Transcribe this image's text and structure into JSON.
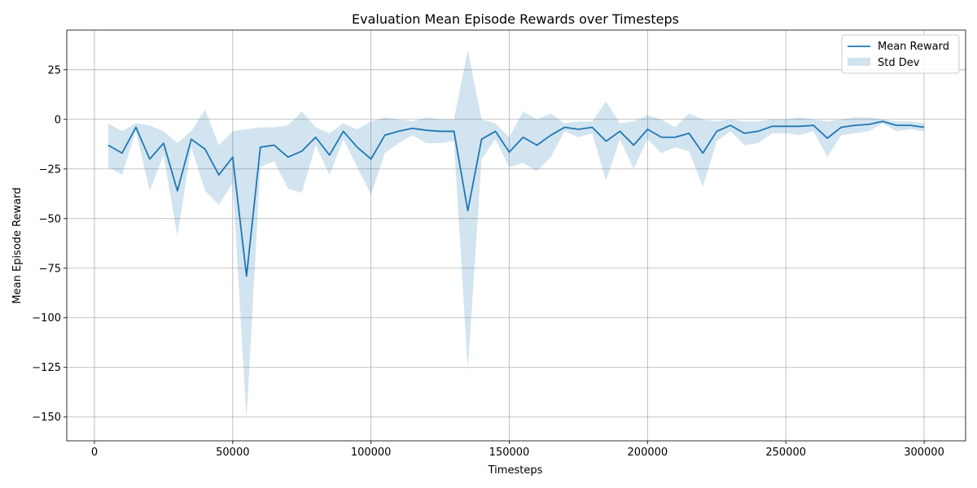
{
  "chart_data": {
    "type": "line",
    "title": "Evaluation Mean Episode Rewards over Timesteps",
    "xlabel": "Timesteps",
    "ylabel": "Mean Episode Reward",
    "xlim": [
      -10000,
      315000
    ],
    "ylim": [
      -162,
      45
    ],
    "xticks": [
      0,
      50000,
      100000,
      150000,
      200000,
      250000,
      300000
    ],
    "xtick_labels": [
      "0",
      "50000",
      "100000",
      "150000",
      "200000",
      "250000",
      "300000"
    ],
    "yticks": [
      25,
      0,
      -25,
      -50,
      -75,
      -100,
      -125,
      -150
    ],
    "ytick_labels": [
      "25",
      "0",
      "−25",
      "−50",
      "−75",
      "−100",
      "−125",
      "−150"
    ],
    "grid": true,
    "legend_position": "top-right",
    "x": [
      5000,
      10000,
      15000,
      20000,
      25000,
      30000,
      35000,
      40000,
      45000,
      50000,
      55000,
      60000,
      65000,
      70000,
      75000,
      80000,
      85000,
      90000,
      95000,
      100000,
      105000,
      110000,
      115000,
      120000,
      125000,
      130000,
      135000,
      140000,
      145000,
      150000,
      155000,
      160000,
      165000,
      170000,
      175000,
      180000,
      185000,
      190000,
      195000,
      200000,
      205000,
      210000,
      215000,
      220000,
      225000,
      230000,
      235000,
      240000,
      245000,
      250000,
      255000,
      260000,
      265000,
      270000,
      275000,
      280000,
      285000,
      290000,
      295000,
      300000
    ],
    "series": [
      {
        "name": "Mean Reward",
        "style": "line",
        "color": "#1f77b4",
        "values": [
          -13,
          -17,
          -4,
          -20,
          -12,
          -36,
          -10,
          -15,
          -28,
          -19,
          -79,
          -14,
          -13,
          -19,
          -16,
          -9,
          -18,
          -6,
          -14,
          -20,
          -8,
          -6,
          -4.5,
          -5.5,
          -6,
          -6,
          -46,
          -10,
          -6,
          -16.5,
          -9,
          -13,
          -8,
          -4,
          -5,
          -4,
          -11,
          -6,
          -13,
          -5,
          -9,
          -9,
          -7,
          -17,
          -6,
          -3,
          -7,
          -6,
          -3.5,
          -3.5,
          -3.5,
          -3,
          -9.5,
          -4,
          -3,
          -2.5,
          -1,
          -3,
          -3,
          -4
        ]
      },
      {
        "name": "Std Dev",
        "style": "band",
        "color": "#1f77b4",
        "opacity": 0.2,
        "upper": [
          -2,
          -6,
          -2,
          -3,
          -6,
          -12,
          -6,
          5,
          -13,
          -6,
          -5,
          -4,
          -4,
          -3,
          4,
          -4,
          -7,
          -2,
          -5,
          -1,
          1,
          0,
          -1,
          1,
          0,
          0,
          35,
          0,
          -2,
          -9,
          4,
          0,
          3,
          -2,
          -1,
          -1,
          9,
          -2,
          -1,
          2,
          0,
          -4,
          3,
          0,
          -1,
          0,
          -1,
          -1,
          0,
          0,
          1,
          0,
          -1,
          0,
          1,
          1,
          0,
          -1,
          -1,
          -2
        ],
        "lower": [
          -24,
          -28,
          -6,
          -36,
          -18,
          -59,
          -14,
          -36,
          -43,
          -32,
          -151,
          -24,
          -21,
          -35,
          -37,
          -13,
          -28,
          -10,
          -24,
          -38,
          -17,
          -12,
          -8,
          -12,
          -12,
          -11,
          -126,
          -20,
          -10,
          -24,
          -22,
          -26,
          -19,
          -6,
          -9,
          -7,
          -31,
          -10,
          -25,
          -10,
          -17,
          -14,
          -16,
          -34,
          -11,
          -6,
          -13,
          -12,
          -7,
          -7,
          -8,
          -6,
          -19,
          -8,
          -7,
          -6,
          -2,
          -6,
          -5,
          -6
        ]
      }
    ]
  }
}
